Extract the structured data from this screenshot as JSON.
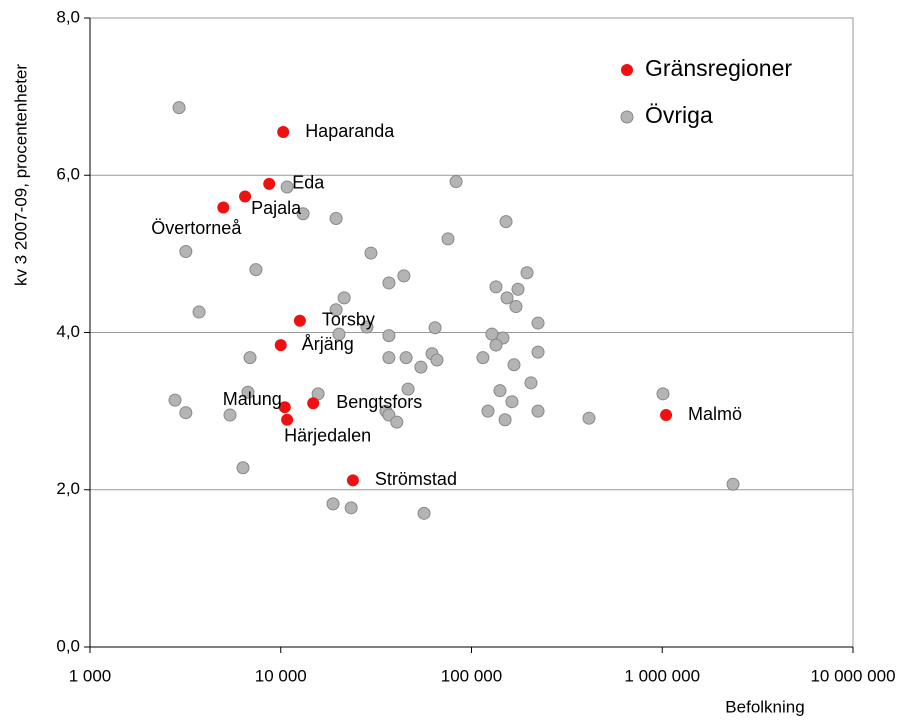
{
  "chart_data": {
    "type": "scatter",
    "x_label": "Befolkning",
    "y_label": "kv 3 2007-09, procentenheter",
    "xscale": "log",
    "xlim": [
      1000,
      10000000
    ],
    "ylim": [
      0,
      8
    ],
    "xticks": [
      {
        "value": 1000,
        "label": "1 000"
      },
      {
        "value": 10000,
        "label": "10 000"
      },
      {
        "value": 100000,
        "label": "100 000"
      },
      {
        "value": 1000000,
        "label": "1 000 000"
      },
      {
        "value": 10000000,
        "label": "10 000 000"
      }
    ],
    "yticks": [
      {
        "value": 0,
        "label": "0,0"
      },
      {
        "value": 2,
        "label": "2,0"
      },
      {
        "value": 4,
        "label": "4,0"
      },
      {
        "value": 6,
        "label": "6,0"
      },
      {
        "value": 8,
        "label": "8,0"
      }
    ],
    "grid": true,
    "legend": "upper right",
    "series": [
      {
        "name": "Gränsregioner",
        "color": "#ee1111",
        "labels": [
          "Haparanda",
          "Eda",
          "Pajala",
          "Övertorneå",
          "Torsby",
          "Årjäng",
          "Malung",
          "Bengtsfors",
          "Härjedalen",
          "Strömstad",
          "Malmö"
        ],
        "x": [
          10300,
          8700,
          6500,
          5000,
          12600,
          10000,
          10500,
          14800,
          10800,
          23900,
          1047000
        ],
        "values": [
          6.55,
          5.89,
          5.73,
          5.59,
          4.15,
          3.84,
          3.05,
          3.1,
          2.89,
          2.12,
          2.95
        ]
      },
      {
        "name": "Övriga",
        "color": "#b4b4b4",
        "x": [
          2930,
          3180,
          3730,
          7410,
          6900,
          2790,
          3180,
          5420,
          6730,
          6340,
          10800,
          13100,
          19500,
          29700,
          36900,
          44200,
          21500,
          19500,
          20200,
          28300,
          36900,
          36900,
          45400,
          15700,
          64400,
          62100,
          65900,
          54300,
          46500,
          35600,
          36900,
          40600,
          18800,
          23400,
          56400,
          83000,
          75300,
          151700,
          134400,
          153600,
          175300,
          195500,
          171000,
          223200,
          127900,
          146200,
          134400,
          114800,
          223200,
          167000,
          205000,
          141000,
          163000,
          122000,
          150000,
          223200,
          413000,
          1009000,
          2350000
        ],
        "values": [
          6.86,
          5.03,
          4.26,
          4.8,
          3.68,
          3.14,
          2.98,
          2.95,
          3.24,
          2.28,
          5.85,
          5.51,
          5.45,
          5.01,
          4.63,
          4.72,
          4.44,
          4.29,
          3.98,
          4.07,
          3.96,
          3.68,
          3.68,
          3.22,
          4.06,
          3.73,
          3.65,
          3.56,
          3.28,
          3.0,
          2.95,
          2.86,
          1.82,
          1.77,
          1.7,
          5.92,
          5.19,
          5.41,
          4.58,
          4.44,
          4.55,
          4.76,
          4.33,
          4.12,
          3.98,
          3.93,
          3.84,
          3.68,
          3.75,
          3.59,
          3.36,
          3.26,
          3.12,
          3.0,
          2.89,
          3.0,
          2.91,
          3.22,
          2.07
        ]
      }
    ]
  }
}
